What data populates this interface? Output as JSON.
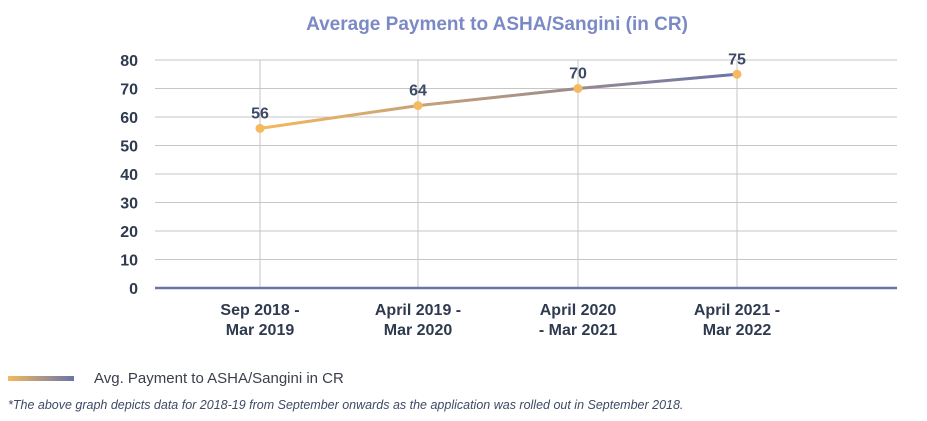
{
  "chart_data": {
    "type": "line",
    "title": "Average Payment to ASHA/Sangini (in CR)",
    "categories": [
      "Sep 2018 - Mar 2019",
      "April 2019 - Mar 2020",
      "April 2020 - Mar 2021",
      "April 2021 - Mar 2022"
    ],
    "category_lines": [
      [
        "Sep 2018 -",
        "Mar 2019"
      ],
      [
        "April 2019 -",
        "Mar 2020"
      ],
      [
        "April 2020",
        "- Mar 2021"
      ],
      [
        "April 2021 -",
        "Mar 2022"
      ]
    ],
    "series": [
      {
        "name": "Avg. Payment to ASHA/Sangini in CR",
        "values": [
          56,
          64,
          70,
          75
        ]
      }
    ],
    "yticks": [
      0,
      10,
      20,
      30,
      40,
      50,
      60,
      70,
      80
    ],
    "ylim": [
      0,
      80
    ],
    "xlabel": "",
    "ylabel": "",
    "grid": true,
    "legend_position": "bottom-left",
    "colors": {
      "line_start": "#F5B95F",
      "line_end": "#6A74A8",
      "marker": "#F5B95F",
      "grid": "#c6c6c6",
      "axis": "#6A74A8",
      "title": "#7B8AC6"
    }
  },
  "footnote": "*The above graph depicts data for 2018-19 from September onwards as the application was rolled out in September 2018."
}
